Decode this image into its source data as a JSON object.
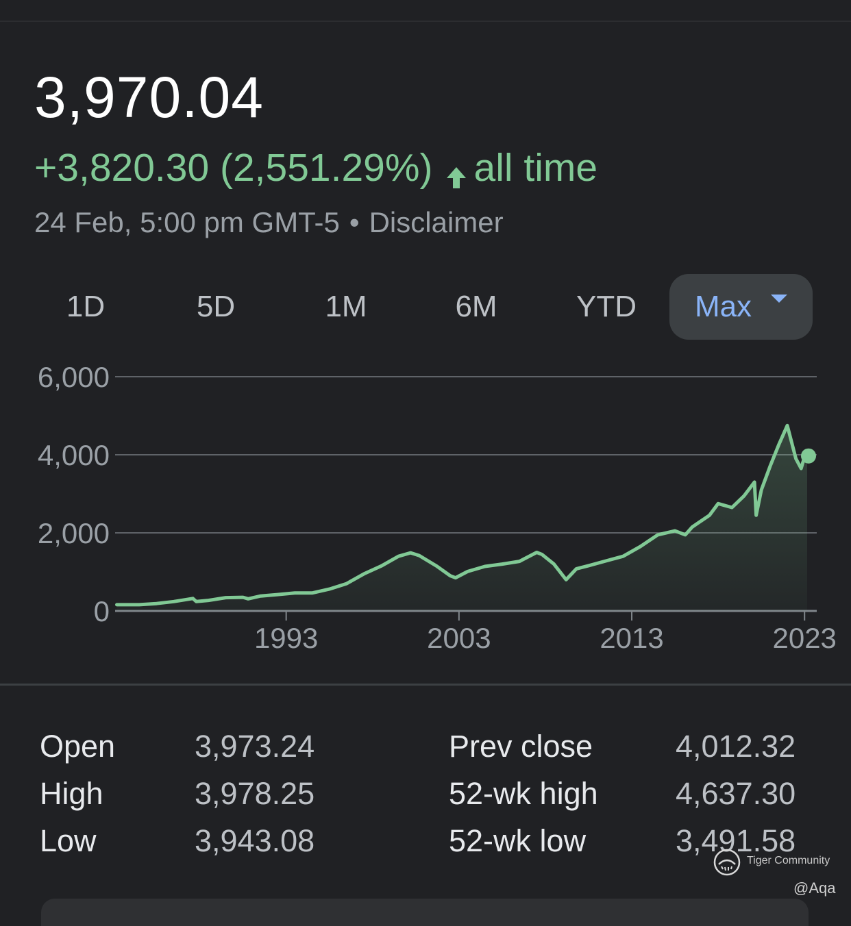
{
  "quote": {
    "price": "3,970.04",
    "change": "+3,820.30 (2,551.29%)",
    "period": "all time",
    "timestamp": "24 Feb, 5:00 pm GMT-5",
    "separator": "•",
    "disclaimer": "Disclaimer"
  },
  "range_tabs": [
    {
      "label": "1D",
      "selected": false
    },
    {
      "label": "5D",
      "selected": false
    },
    {
      "label": "1M",
      "selected": false
    },
    {
      "label": "6M",
      "selected": false
    },
    {
      "label": "YTD",
      "selected": false
    },
    {
      "label": "Max",
      "selected": true
    }
  ],
  "colors": {
    "background": "#202124",
    "positive": "#81c995",
    "accent": "#8ab4f8",
    "grid": "#5f6368"
  },
  "icons": {
    "change_direction": "arrow-up-icon",
    "range_dropdown": "caret-down-icon"
  },
  "chart_data": {
    "type": "area",
    "title": "",
    "xlabel": "",
    "ylabel": "",
    "ylim": [
      0,
      6000
    ],
    "xlim": [
      1983.1,
      2023.15
    ],
    "y_ticks": [
      "0",
      "2,000",
      "4,000",
      "6,000"
    ],
    "x_ticks": [
      "1993",
      "2003",
      "2013",
      "2023"
    ],
    "grid": true,
    "series": [
      {
        "x": [
          1983.2,
          1984.5,
          1985.5,
          1986.5,
          1987.6,
          1987.8,
          1988.5,
          1989.5,
          1990.5,
          1990.8,
          1991.5,
          1992.5,
          1993.5,
          1994.5,
          1995.5,
          1996.5,
          1997.5,
          1998.5,
          1999.5,
          2000.2,
          2000.7,
          2001.7,
          2002.5,
          2002.8,
          2003.5,
          2004.5,
          2005.5,
          2006.5,
          2007.5,
          2007.8,
          2008.5,
          2009.2,
          2009.8,
          2010.5,
          2011.5,
          2012.5,
          2013.5,
          2014.5,
          2015.5,
          2016.1,
          2016.5,
          2017.5,
          2018.0,
          2018.8,
          2019.5,
          2020.1,
          2020.2,
          2020.5,
          2021.0,
          2021.5,
          2022.0,
          2022.5,
          2022.8,
          2023.0,
          2023.15
        ],
        "y": [
          160,
          160,
          190,
          240,
          320,
          240,
          270,
          340,
          350,
          310,
          380,
          420,
          460,
          460,
          560,
          700,
          950,
          1150,
          1400,
          1490,
          1420,
          1150,
          900,
          850,
          1010,
          1140,
          1200,
          1270,
          1500,
          1450,
          1200,
          800,
          1080,
          1160,
          1280,
          1400,
          1650,
          1950,
          2050,
          1950,
          2150,
          2450,
          2750,
          2650,
          2950,
          3300,
          2450,
          3100,
          3700,
          4250,
          4750,
          3900,
          3650,
          3950,
          3970
        ]
      }
    ]
  },
  "stats": {
    "left": [
      {
        "label": "Open",
        "value": "3,973.24"
      },
      {
        "label": "High",
        "value": "3,978.25"
      },
      {
        "label": "Low",
        "value": "3,943.08"
      }
    ],
    "right": [
      {
        "label": "Prev close",
        "value": "4,012.32"
      },
      {
        "label": "52-wk high",
        "value": "4,637.30"
      },
      {
        "label": "52-wk low",
        "value": "3,491.58"
      }
    ]
  },
  "watermark": {
    "brand": "Tiger Community",
    "handle": "@Aqa"
  }
}
